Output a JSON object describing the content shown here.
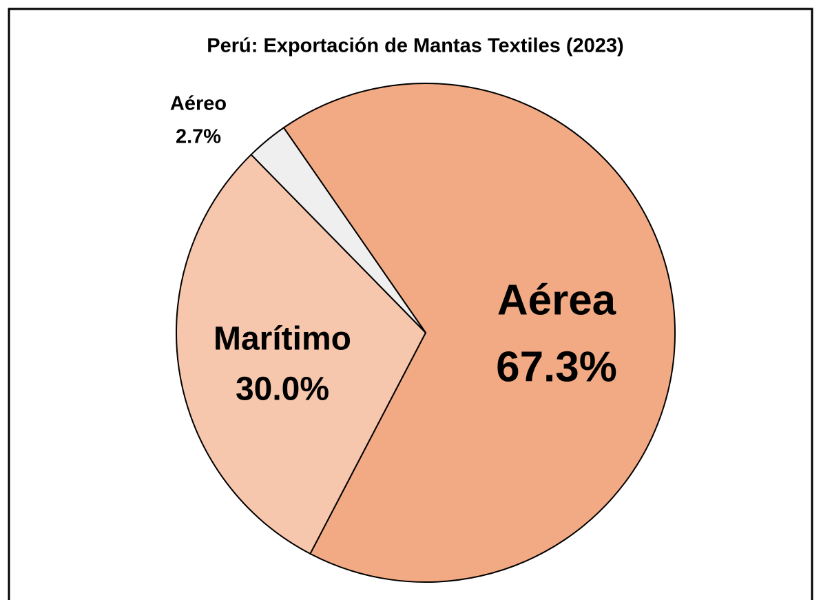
{
  "chart_data": {
    "type": "pie",
    "title": "Perú: Exportación de Mantas Textiles (2023)",
    "categories": [
      "Aérea",
      "Marítimo",
      "Aéreo"
    ],
    "values": [
      67.3,
      30.0,
      2.7
    ],
    "value_labels": [
      "67.3%",
      "30.0%",
      "2.7%"
    ],
    "colors": [
      "#f2aa84",
      "#f6c6ad",
      "#efefef"
    ]
  }
}
